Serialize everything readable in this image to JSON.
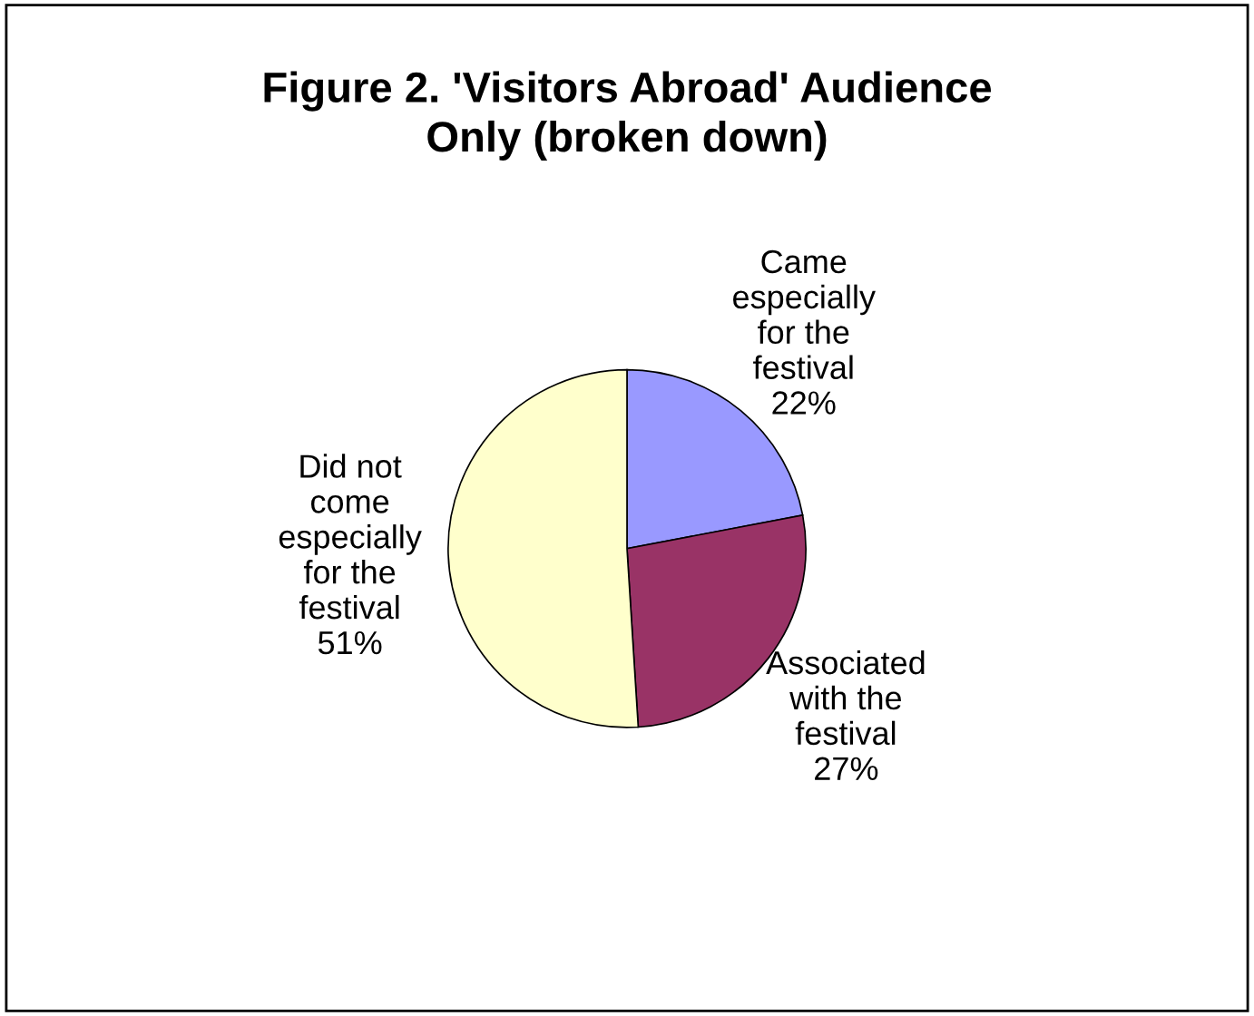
{
  "chart_data": {
    "type": "pie",
    "title": "Figure 2. 'Visitors Abroad' Audience Only (broken down)",
    "categories": [
      "Came especially for the festival",
      "Associated with the festival",
      "Did not come especially for the festival"
    ],
    "values": [
      22,
      27,
      51
    ],
    "value_labels": [
      "22%",
      "27%",
      "51%"
    ],
    "colors": [
      "#9999ff",
      "#993366",
      "#ffffcc"
    ]
  }
}
